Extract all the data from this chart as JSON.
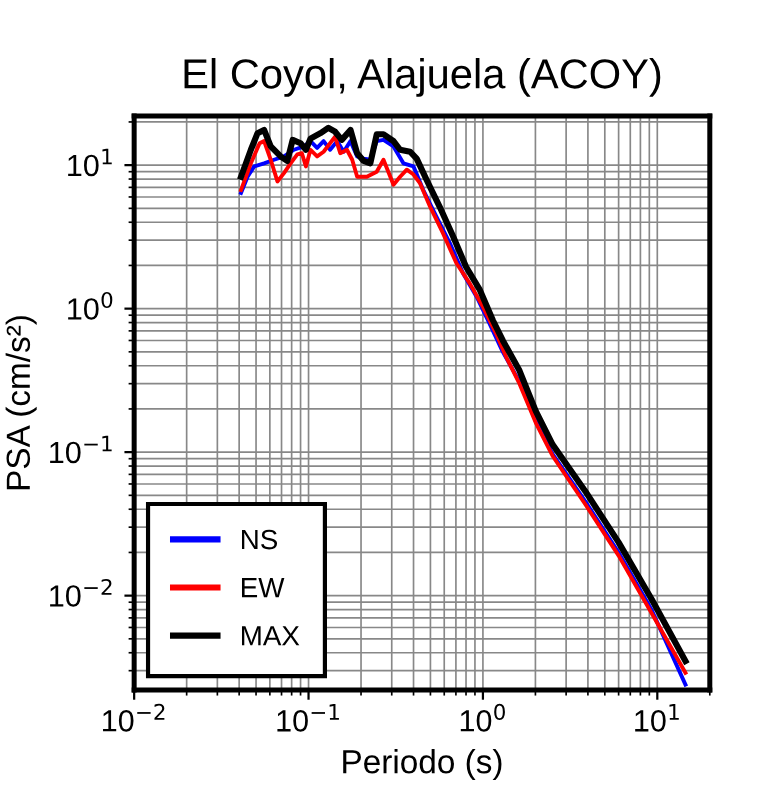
{
  "chart_data": {
    "type": "line",
    "title": "El Coyol, Alajuela (ACOY)",
    "xlabel": "Periodo (s)",
    "ylabel": "PSA (cm/s²)",
    "log": "xy",
    "xlim": [
      0.01,
      20
    ],
    "ylim": [
      0.0022,
      22
    ],
    "xticks": [
      {
        "value": 0.01,
        "label": "10$^{−2}$"
      },
      {
        "value": 0.1,
        "label": "10$^{−1}$"
      },
      {
        "value": 1,
        "label": "10$^{0}$"
      },
      {
        "value": 10,
        "label": "10$^{1}$"
      }
    ],
    "yticks": [
      {
        "value": 0.01,
        "label": "10$^{−2}$"
      },
      {
        "value": 0.1,
        "label": "10$^{−1}$"
      },
      {
        "value": 1,
        "label": "10$^{0}$"
      },
      {
        "value": 10,
        "label": "10$^{1}$"
      }
    ],
    "grid": true,
    "legend": "bottom left",
    "line_style": "solid",
    "marker": "none",
    "series": [
      {
        "name": "NS",
        "color": "#0000ff",
        "x": [
          0.041,
          0.0447,
          0.0488,
          0.0556,
          0.0634,
          0.0723,
          0.0825,
          0.094,
          0.1026,
          0.112,
          0.122,
          0.133,
          0.146,
          0.159,
          0.174,
          0.19,
          0.207,
          0.226,
          0.246,
          0.269,
          0.307,
          0.35,
          0.4,
          0.455,
          0.54,
          0.646,
          0.77,
          0.92,
          1.09,
          1.3,
          1.62,
          2.01,
          2.51,
          3.88,
          6.0,
          9.3,
          14.5
        ],
        "values": [
          6.4,
          8.3,
          9.8,
          10.3,
          10.9,
          11.5,
          12.8,
          13.5,
          14.7,
          13.2,
          14.7,
          12.8,
          14.7,
          12.4,
          14.7,
          11.5,
          11.1,
          10.9,
          14.7,
          15.0,
          13.5,
          10.3,
          9.8,
          6.7,
          4.4,
          2.86,
          1.76,
          1.21,
          0.79,
          0.5,
          0.31,
          0.165,
          0.097,
          0.045,
          0.02,
          0.0079,
          0.0024
        ]
      },
      {
        "name": "EW",
        "color": "#ff0000",
        "x": [
          0.041,
          0.0467,
          0.0524,
          0.0556,
          0.0607,
          0.0663,
          0.0723,
          0.0789,
          0.0862,
          0.0916,
          0.0966,
          0.1026,
          0.112,
          0.122,
          0.142,
          0.152,
          0.166,
          0.178,
          0.19,
          0.216,
          0.246,
          0.269,
          0.307,
          0.335,
          0.366,
          0.4,
          0.435,
          0.497,
          0.59,
          0.705,
          0.84,
          1.0,
          1.19,
          1.36,
          1.62,
          2.01,
          2.51,
          3.88,
          6.0,
          9.3,
          14.5
        ],
        "values": [
          6.7,
          10.3,
          14.2,
          14.7,
          10.9,
          7.7,
          8.8,
          10.3,
          11.9,
          12.1,
          9.8,
          12.8,
          11.5,
          12.4,
          15.8,
          12.1,
          12.8,
          10.9,
          8.3,
          8.3,
          9.0,
          10.9,
          7.3,
          8.3,
          9.3,
          8.6,
          7.5,
          5.15,
          3.36,
          2.07,
          1.5,
          1.03,
          0.67,
          0.46,
          0.3,
          0.16,
          0.094,
          0.043,
          0.019,
          0.0075,
          0.0029
        ]
      },
      {
        "name": "MAX",
        "color": "#000000",
        "x": [
          0.041,
          0.0467,
          0.051,
          0.0556,
          0.0607,
          0.0692,
          0.0756,
          0.0811,
          0.09,
          0.0966,
          0.1026,
          0.117,
          0.13,
          0.142,
          0.155,
          0.174,
          0.19,
          0.207,
          0.226,
          0.246,
          0.269,
          0.307,
          0.335,
          0.382,
          0.417,
          0.475,
          0.566,
          0.675,
          0.8,
          0.96,
          1.14,
          1.3,
          1.62,
          2.01,
          2.51,
          3.88,
          6.0,
          9.3,
          14.5
        ],
        "values": [
          8.3,
          12.8,
          16.7,
          17.6,
          13.5,
          11.5,
          10.7,
          15.0,
          14.2,
          12.8,
          15.3,
          16.7,
          18.2,
          17.1,
          15.0,
          17.6,
          12.1,
          10.7,
          10.3,
          16.4,
          16.4,
          14.7,
          12.8,
          12.4,
          11.1,
          7.9,
          5.1,
          3.18,
          1.96,
          1.35,
          0.83,
          0.6,
          0.37,
          0.193,
          0.113,
          0.053,
          0.0235,
          0.0094,
          0.0035
        ]
      }
    ]
  }
}
